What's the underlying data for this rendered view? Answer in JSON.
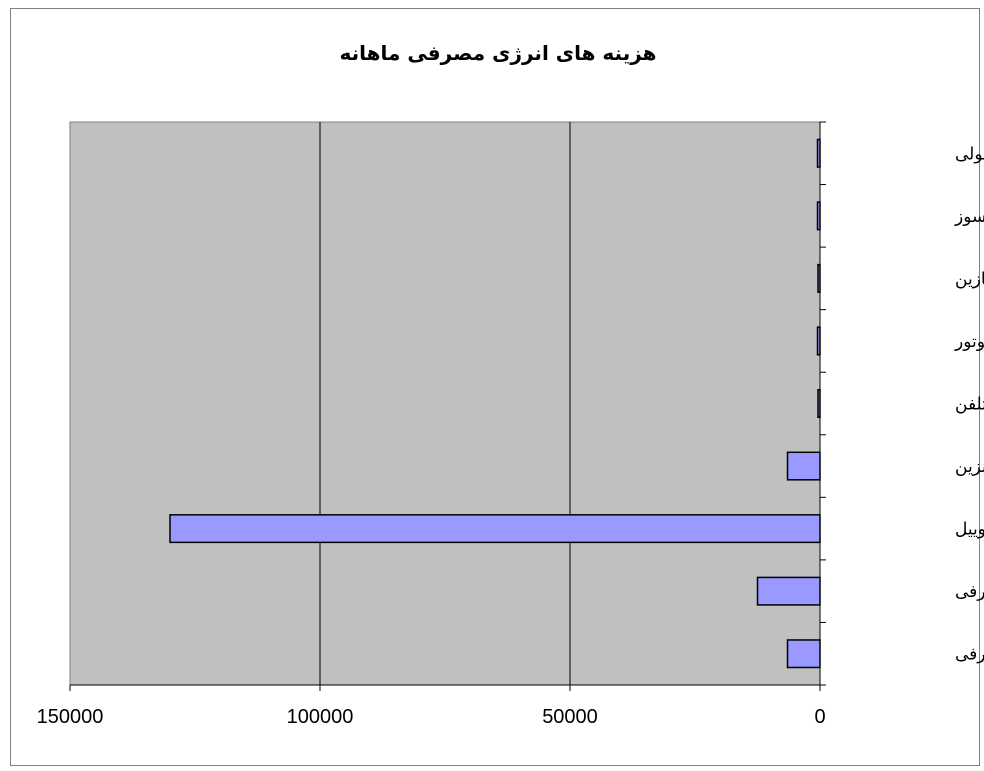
{
  "chart_data": {
    "type": "bar",
    "orientation": "horizontal",
    "title": "هزینه های انرژی مصرفی ماهانه",
    "categories": [
      "برق مصرفی",
      "آب مصرفی",
      "گازوییل",
      "بنزین",
      "تلفن",
      "روغن موتور",
      "واسکازین",
      "گریس نسوز",
      "گریس معمولی"
    ],
    "values": [
      6500,
      12500,
      130000,
      6500,
      250,
      500,
      300,
      500,
      500
    ],
    "xlim": [
      0,
      150000
    ],
    "x_ticks": [
      "0",
      "50000",
      "100000",
      "150000"
    ],
    "x_reversed": true,
    "grid": true,
    "colors": {
      "plot_bg": "#c0c0c0",
      "bar_fill": "#9999ff",
      "bar_stroke": "#000000",
      "grid": "#000000"
    }
  }
}
